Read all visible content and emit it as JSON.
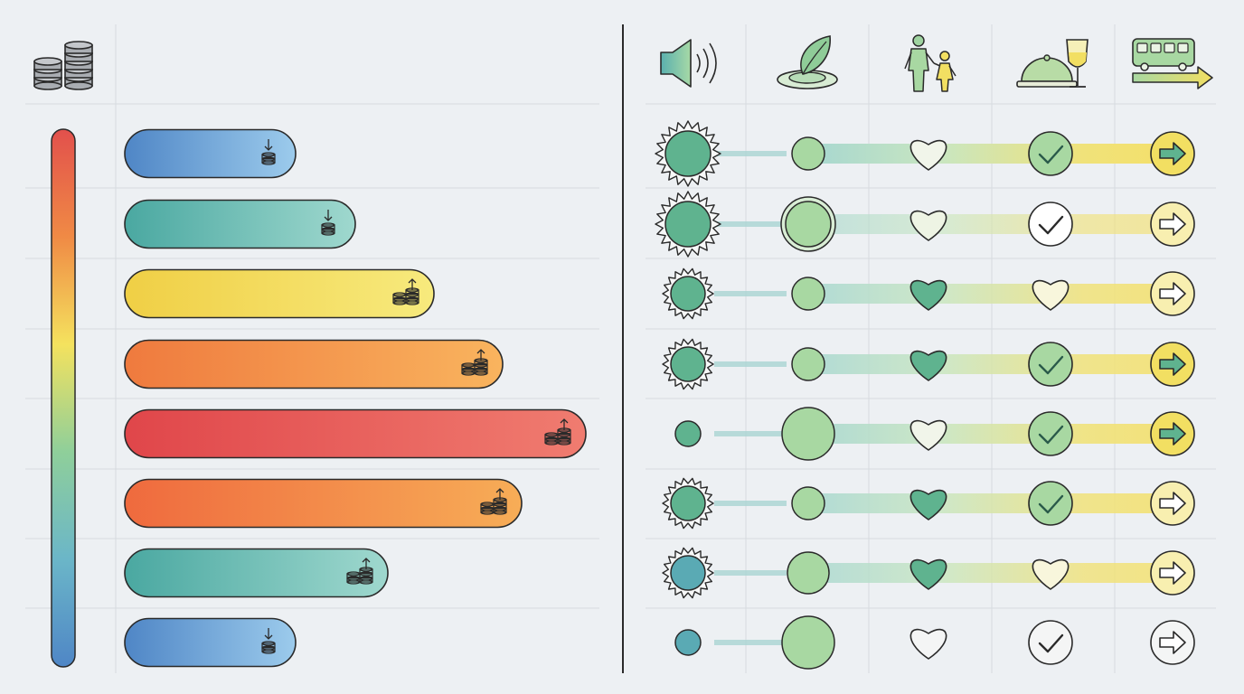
{
  "header": {
    "left_icon": "coin-stacks-icon",
    "columns": [
      {
        "key": "sound",
        "icon": "speaker-icon"
      },
      {
        "key": "nature",
        "icon": "leaf-water-icon"
      },
      {
        "key": "family",
        "icon": "adult-child-icon"
      },
      {
        "key": "dining",
        "icon": "cloche-wine-icon"
      },
      {
        "key": "transport",
        "icon": "bus-arrow-icon"
      }
    ]
  },
  "scale": {
    "type": "vertical-gradient-bar",
    "colors_top_to_bottom": [
      "#e2504c",
      "#f08a45",
      "#f4e25e",
      "#8fcf9a",
      "#6bb6c8",
      "#4f86c6"
    ]
  },
  "bars": [
    {
      "level": 0.37,
      "color_start": "#4f86c6",
      "color_end": "#9ccbec",
      "direction": "down",
      "coins": 1
    },
    {
      "level": 0.5,
      "color_start": "#4aa8a1",
      "color_end": "#9fd8ce",
      "direction": "down",
      "coins": 1
    },
    {
      "level": 0.67,
      "color_start": "#f0cf45",
      "color_end": "#f7ea7d",
      "direction": "up",
      "coins": 2
    },
    {
      "level": 0.82,
      "color_start": "#ef7a3e",
      "color_end": "#f9b45e",
      "direction": "up",
      "coins": 2
    },
    {
      "level": 1.0,
      "color_start": "#e0464a",
      "color_end": "#f07c70",
      "direction": "up",
      "coins": 2
    },
    {
      "level": 0.86,
      "color_start": "#ef6a3e",
      "color_end": "#f7ad57",
      "direction": "up",
      "coins": 2
    },
    {
      "level": 0.57,
      "color_start": "#4aa8a1",
      "color_end": "#9fd8ce",
      "direction": "up",
      "coins": 2
    },
    {
      "level": 0.37,
      "color_start": "#4f86c6",
      "color_end": "#9ccbec",
      "direction": "down",
      "coins": 1
    }
  ],
  "matrix": [
    {
      "sound": "burst-large",
      "nature": "small",
      "family": "outline",
      "dining": "check-filled",
      "transport": "arrow-filled",
      "band": 1.0
    },
    {
      "sound": "burst-large",
      "nature": "ringed",
      "family": "outline-light",
      "dining": "check-outline",
      "transport": "arrow-outline",
      "band": 0.5
    },
    {
      "sound": "burst",
      "nature": "small",
      "family": "filled",
      "dining": "heart-outline",
      "transport": "arrow-outline",
      "band": 0.8
    },
    {
      "sound": "burst",
      "nature": "small",
      "family": "filled",
      "dining": "check-filled",
      "transport": "arrow-filled",
      "band": 0.8
    },
    {
      "sound": "dot",
      "nature": "large",
      "family": "outline",
      "dining": "check-filled",
      "transport": "arrow-filled",
      "band": 0.85
    },
    {
      "sound": "burst",
      "nature": "small",
      "family": "filled",
      "dining": "check-filled",
      "transport": "arrow-outline",
      "band": 0.8
    },
    {
      "sound": "burst-blue",
      "nature": "medium",
      "family": "filled",
      "dining": "heart-outline",
      "transport": "arrow-outline",
      "band": 0.75
    },
    {
      "sound": "dot-blue",
      "nature": "large",
      "family": "outline-plain",
      "dining": "check-plain",
      "transport": "arrow-plain",
      "band": 0.0
    }
  ],
  "colors": {
    "background": "#edf0f3",
    "grid": "#d6dadf",
    "ink": "#2a2a2a",
    "icon_gray": "#a9adb2",
    "teal": "#5fb38f",
    "mint": "#a8d8a2",
    "yellow": "#f2df62",
    "blue_teal": "#5aaab4"
  }
}
